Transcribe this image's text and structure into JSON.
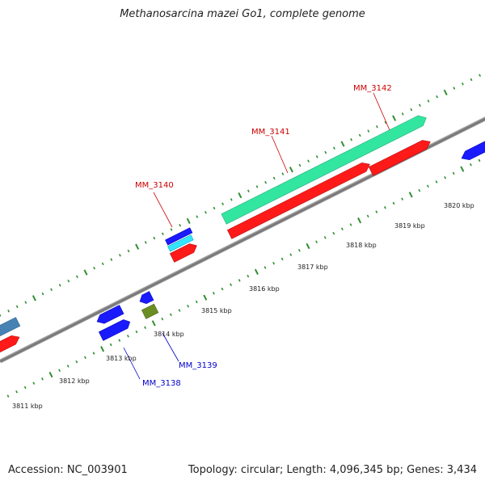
{
  "title": "Methanosarcina mazei Go1, complete genome",
  "footer": {
    "accession": "Accession: NC_003901",
    "topology": "Topology: circular; Length: 4,096,345 bp; Genes: 3,434"
  },
  "colors": {
    "backbone": "#7a7a7a",
    "tick": "#2f8f2f",
    "forward_gene_label": "#cc0000",
    "reverse_gene_label": "#0000cc",
    "red_gene": "#ff1a1a",
    "blue_gene": "#1a1aff",
    "cyan_gene": "#33e6ff",
    "teal_gene": "#33e6a0",
    "olive_gene": "#6b8e23",
    "steel_gene": "#4682b4"
  },
  "kbp_labels": [
    "3811 kbp",
    "3812 kbp",
    "3813 kbp",
    "3814 kbp",
    "3815 kbp",
    "3816 kbp",
    "3817 kbp",
    "3818 kbp",
    "3819 kbp",
    "3820 kbp"
  ],
  "gene_labels": {
    "mm3138": "MM_3138",
    "mm3139": "MM_3139",
    "mm3140": "MM_3140",
    "mm3141": "MM_3141",
    "mm3142": "MM_3142"
  }
}
